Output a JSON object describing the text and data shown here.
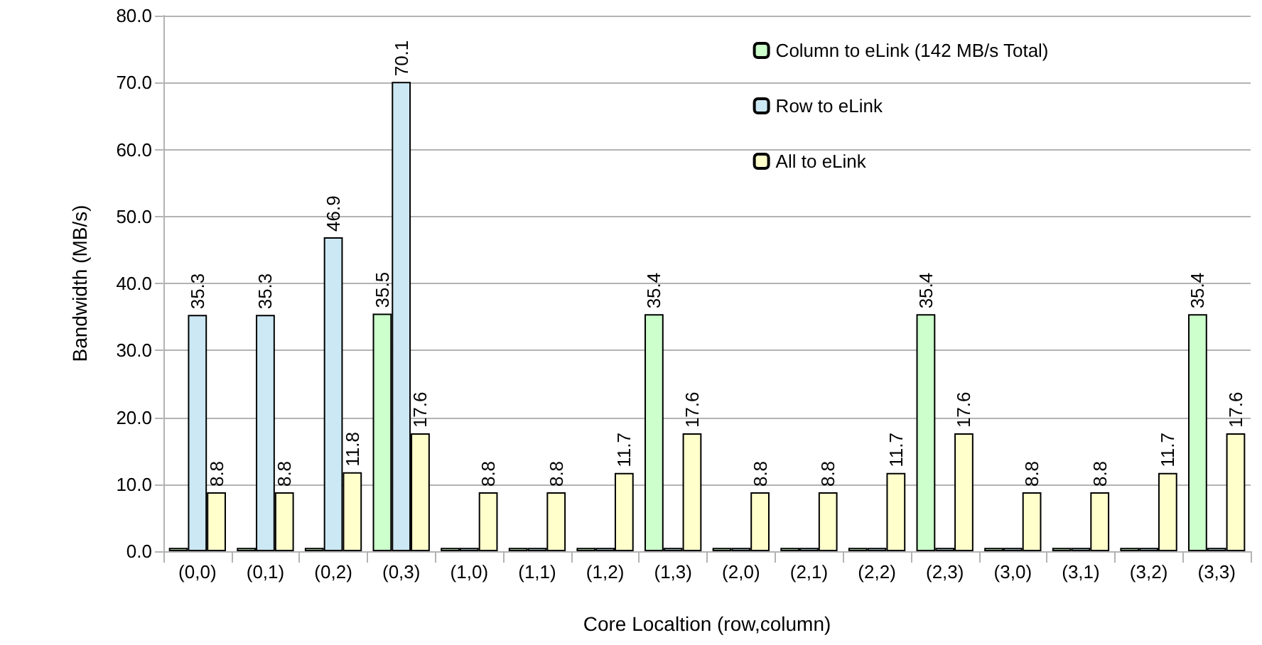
{
  "chart_data": {
    "type": "bar",
    "xlabel": "Core Localtion (row,column)",
    "ylabel": "Bandwidth (MB/s)",
    "categories": [
      "(0,0)",
      "(0,1)",
      "(0,2)",
      "(0,3)",
      "(1,0)",
      "(1,1)",
      "(1,2)",
      "(1,3)",
      "(2,0)",
      "(2,1)",
      "(2,2)",
      "(2,3)",
      "(3,0)",
      "(3,1)",
      "(3,2)",
      "(3,3)"
    ],
    "series": [
      {
        "name": "Column to eLink (142 MB/s Total)",
        "color": "#ccffcc",
        "values": [
          0.5,
          0.5,
          0.5,
          35.5,
          0.5,
          0.5,
          0.5,
          35.4,
          0.5,
          0.5,
          0.5,
          35.4,
          0.5,
          0.5,
          0.5,
          35.4
        ],
        "value_labels": [
          null,
          null,
          null,
          "35.5",
          null,
          null,
          null,
          "35.4",
          null,
          null,
          null,
          "35.4",
          null,
          null,
          null,
          "35.4"
        ]
      },
      {
        "name": "Row to eLink",
        "color": "#cce8f4",
        "values": [
          35.3,
          35.3,
          46.9,
          70.1,
          0.5,
          0.5,
          0.5,
          0.5,
          0.5,
          0.5,
          0.5,
          0.5,
          0.5,
          0.5,
          0.5,
          0.5
        ],
        "value_labels": [
          "35.3",
          "35.3",
          "46.9",
          "70.1",
          null,
          null,
          null,
          null,
          null,
          null,
          null,
          null,
          null,
          null,
          null,
          null
        ]
      },
      {
        "name": "All to eLink",
        "color": "#ffffcc",
        "values": [
          8.8,
          8.8,
          11.8,
          17.6,
          8.8,
          8.8,
          11.7,
          17.6,
          8.8,
          8.8,
          11.7,
          17.6,
          8.8,
          8.8,
          11.7,
          17.6
        ],
        "value_labels": [
          "8.8",
          "8.8",
          "11.8",
          "17.6",
          "8.8",
          "8.8",
          "11.7",
          "17.6",
          "8.8",
          "8.8",
          "11.7",
          "17.6",
          "8.8",
          "8.8",
          "11.7",
          "17.6"
        ]
      }
    ],
    "ylim": [
      0,
      80
    ],
    "yticks": [
      {
        "value": 0,
        "label": "0.0"
      },
      {
        "value": 10,
        "label": "10.0"
      },
      {
        "value": 20,
        "label": "20.0"
      },
      {
        "value": 30,
        "label": "30.0"
      },
      {
        "value": 40,
        "label": "40.0"
      },
      {
        "value": 50,
        "label": "50.0"
      },
      {
        "value": 60,
        "label": "60.0"
      },
      {
        "value": 70,
        "label": "70.0"
      },
      {
        "value": 80,
        "label": "80.0"
      }
    ],
    "grid": "y",
    "legend": "top right"
  }
}
